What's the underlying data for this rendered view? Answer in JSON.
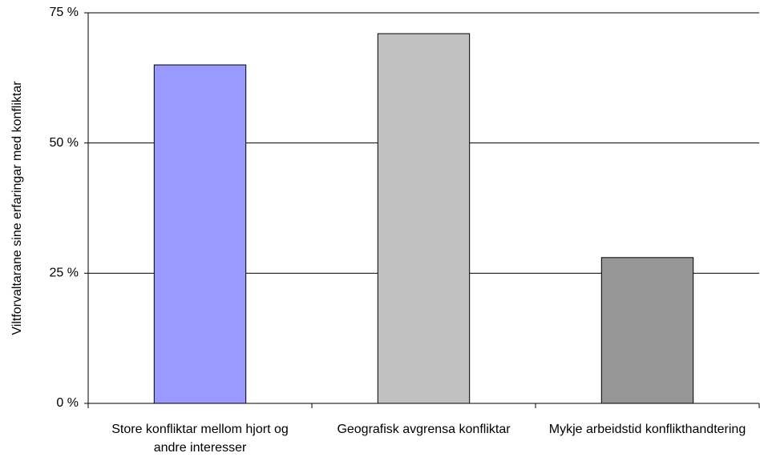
{
  "chart_data": {
    "type": "bar",
    "ylabel": "Viltforvaltarane sine erfaringar med konfliktar",
    "categories": [
      "Store konfliktar mellom hjort og andre interesser",
      "Geografisk avgrensa konfliktar",
      "Mykje arbeidstid konflikthandtering"
    ],
    "values": [
      65,
      71,
      28
    ],
    "colors": [
      "#9999ff",
      "#c0c0c0",
      "#969696"
    ],
    "ylim": [
      0,
      75
    ],
    "yticks": [
      {
        "value": 0,
        "label": "0 %"
      },
      {
        "value": 25,
        "label": "25 %"
      },
      {
        "value": 50,
        "label": "50 %"
      },
      {
        "value": 75,
        "label": "75 %"
      }
    ],
    "grid": true
  }
}
